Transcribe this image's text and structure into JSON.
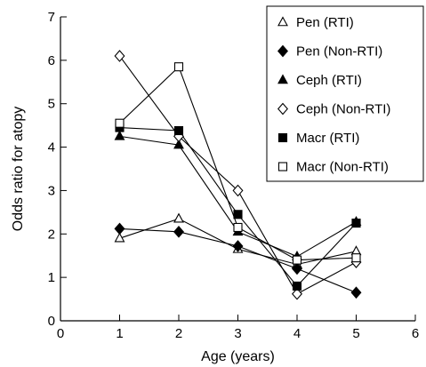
{
  "chart_data": {
    "type": "line",
    "xlabel": "Age (years)",
    "ylabel": "Odds ratio for atopy",
    "xlim": [
      0,
      6
    ],
    "ylim": [
      0,
      7
    ],
    "xticks": [
      "0",
      "1",
      "2",
      "3",
      "4",
      "5",
      "6"
    ],
    "yticks": [
      "0",
      "1",
      "2",
      "3",
      "4",
      "5",
      "6",
      "7"
    ],
    "x": [
      1,
      2,
      3,
      4,
      5
    ],
    "legend_position": "top-right",
    "series": [
      {
        "name": "Pen (RTI)",
        "marker": "triangle",
        "filled": false,
        "values": [
          1.9,
          2.35,
          1.65,
          1.3,
          1.6
        ]
      },
      {
        "name": "Pen (Non-RTI)",
        "marker": "diamond",
        "filled": true,
        "values": [
          2.12,
          2.05,
          1.72,
          1.2,
          0.65
        ]
      },
      {
        "name": "Ceph (RTI)",
        "marker": "triangle",
        "filled": true,
        "values": [
          4.25,
          4.05,
          2.05,
          1.48,
          2.28
        ]
      },
      {
        "name": "Ceph (Non-RTI)",
        "marker": "diamond",
        "filled": false,
        "values": [
          6.1,
          4.25,
          3.0,
          0.62,
          1.35
        ]
      },
      {
        "name": "Macr (RTI)",
        "marker": "square",
        "filled": true,
        "values": [
          4.45,
          4.38,
          2.45,
          0.8,
          2.25
        ]
      },
      {
        "name": "Macr (Non-RTI)",
        "marker": "square",
        "filled": false,
        "values": [
          4.55,
          5.85,
          2.15,
          1.4,
          1.45
        ]
      }
    ]
  }
}
